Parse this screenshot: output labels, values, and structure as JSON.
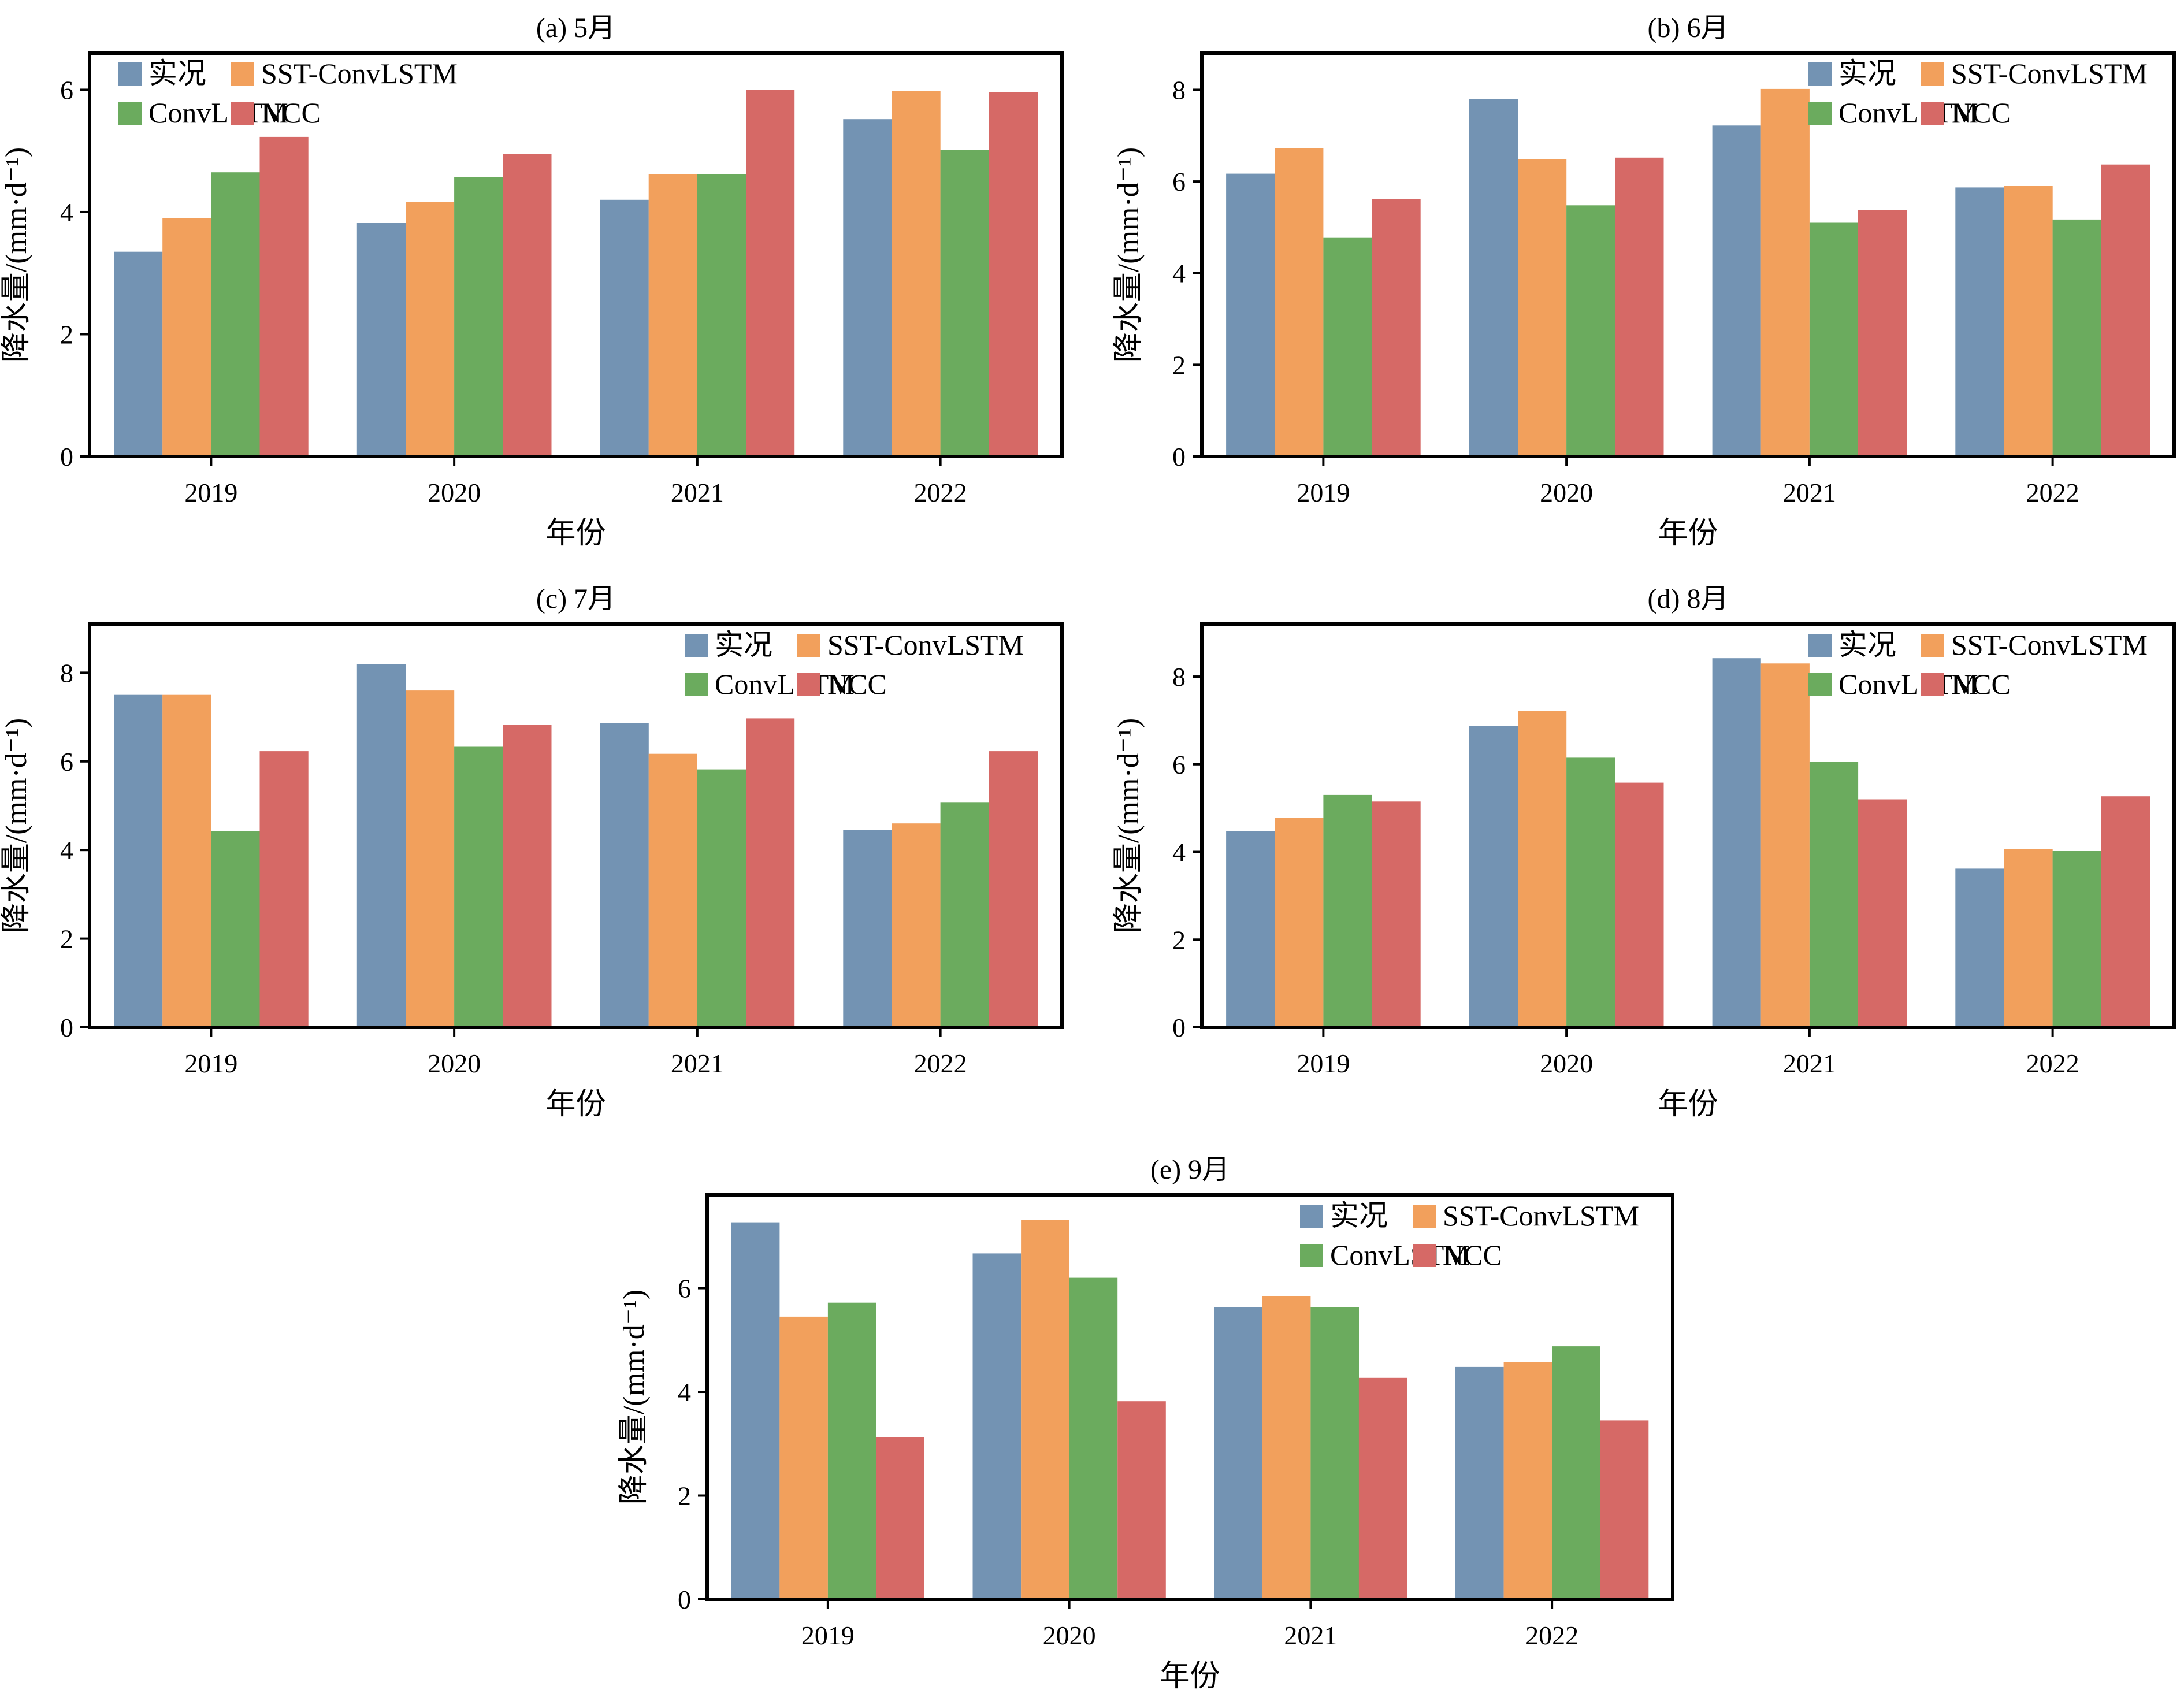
{
  "figure": {
    "ylabel": "降水量/(mm·d⁻¹)",
    "xlabel": "年份"
  },
  "colors": {
    "obs": "#7393b3",
    "sst": "#f2a05c",
    "conv": "#6bab5e",
    "ncc": "#d66966"
  },
  "chart_data": [
    {
      "type": "bar",
      "title": "(a) 5月",
      "categories": [
        "2019",
        "2020",
        "2021",
        "2022"
      ],
      "ylim": [
        0,
        6.6
      ],
      "yticks": [
        0,
        2,
        4,
        6
      ],
      "legend_position": "top-left",
      "series": [
        {
          "name": "实况",
          "key": "obs",
          "values": [
            3.35,
            3.82,
            4.2,
            5.52
          ]
        },
        {
          "name": "SST-ConvLSTM",
          "key": "sst",
          "values": [
            3.9,
            4.17,
            4.62,
            5.98
          ]
        },
        {
          "name": "ConvLSTM",
          "key": "conv",
          "values": [
            4.65,
            4.57,
            4.62,
            5.02
          ]
        },
        {
          "name": "NCC",
          "key": "ncc",
          "values": [
            5.23,
            4.95,
            6.0,
            5.96
          ]
        }
      ]
    },
    {
      "type": "bar",
      "title": "(b) 6月",
      "categories": [
        "2019",
        "2020",
        "2021",
        "2022"
      ],
      "ylim": [
        0,
        8.8
      ],
      "yticks": [
        0,
        2,
        4,
        6,
        8
      ],
      "legend_position": "top-right",
      "series": [
        {
          "name": "实况",
          "key": "obs",
          "values": [
            6.17,
            7.8,
            7.22,
            5.87
          ]
        },
        {
          "name": "SST-ConvLSTM",
          "key": "sst",
          "values": [
            6.72,
            6.48,
            8.02,
            5.9
          ]
        },
        {
          "name": "ConvLSTM",
          "key": "conv",
          "values": [
            4.77,
            5.48,
            5.1,
            5.17
          ]
        },
        {
          "name": "NCC",
          "key": "ncc",
          "values": [
            5.62,
            6.52,
            5.38,
            6.37
          ]
        }
      ]
    },
    {
      "type": "bar",
      "title": "(c) 7月",
      "categories": [
        "2019",
        "2020",
        "2021",
        "2022"
      ],
      "ylim": [
        0,
        9.1
      ],
      "yticks": [
        0,
        2,
        4,
        6,
        8
      ],
      "legend_position": "top-right",
      "series": [
        {
          "name": "实况",
          "key": "obs",
          "values": [
            7.5,
            8.2,
            6.87,
            4.45
          ]
        },
        {
          "name": "SST-ConvLSTM",
          "key": "sst",
          "values": [
            7.5,
            7.6,
            6.17,
            4.6
          ]
        },
        {
          "name": "ConvLSTM",
          "key": "conv",
          "values": [
            4.42,
            6.33,
            5.82,
            5.08
          ]
        },
        {
          "name": "NCC",
          "key": "ncc",
          "values": [
            6.23,
            6.83,
            6.97,
            6.23
          ]
        }
      ]
    },
    {
      "type": "bar",
      "title": "(d) 8月",
      "categories": [
        "2019",
        "2020",
        "2021",
        "2022"
      ],
      "ylim": [
        0,
        9.2
      ],
      "yticks": [
        0,
        2,
        4,
        6,
        8
      ],
      "legend_position": "top-right",
      "series": [
        {
          "name": "实况",
          "key": "obs",
          "values": [
            4.48,
            6.87,
            8.42,
            3.62
          ]
        },
        {
          "name": "SST-ConvLSTM",
          "key": "sst",
          "values": [
            4.78,
            7.22,
            8.3,
            4.07
          ]
        },
        {
          "name": "ConvLSTM",
          "key": "conv",
          "values": [
            5.3,
            6.15,
            6.05,
            4.02
          ]
        },
        {
          "name": "NCC",
          "key": "ncc",
          "values": [
            5.15,
            5.58,
            5.2,
            5.27
          ]
        }
      ]
    },
    {
      "type": "bar",
      "title": "(e) 9月",
      "categories": [
        "2019",
        "2020",
        "2021",
        "2022"
      ],
      "ylim": [
        0,
        7.8
      ],
      "yticks": [
        0,
        2,
        4,
        6
      ],
      "legend_position": "top-right",
      "series": [
        {
          "name": "实况",
          "key": "obs",
          "values": [
            7.27,
            6.67,
            5.63,
            4.48
          ]
        },
        {
          "name": "SST-ConvLSTM",
          "key": "sst",
          "values": [
            5.45,
            7.32,
            5.85,
            4.57
          ]
        },
        {
          "name": "ConvLSTM",
          "key": "conv",
          "values": [
            5.72,
            6.2,
            5.63,
            4.88
          ]
        },
        {
          "name": "NCC",
          "key": "ncc",
          "values": [
            3.12,
            3.82,
            4.27,
            3.45
          ]
        }
      ]
    }
  ]
}
